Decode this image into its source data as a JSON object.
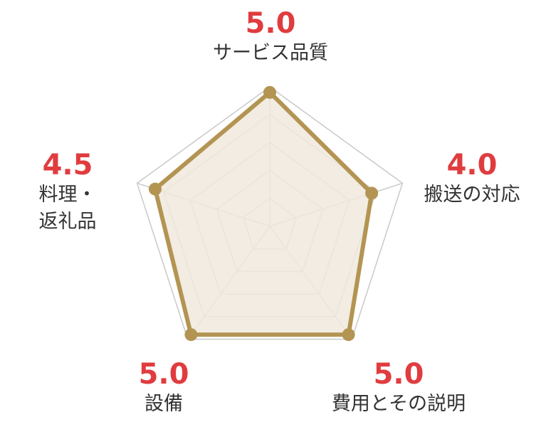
{
  "chart_data": {
    "type": "radar",
    "max": 5,
    "grid_levels": 5,
    "categories": [
      {
        "key": "service",
        "name": "サービス品質",
        "score_label": "5.0",
        "value": 5.0
      },
      {
        "key": "transport",
        "name": "搬送の対応",
        "score_label": "4.0",
        "value": 4.0
      },
      {
        "key": "cost",
        "name": "費用とその説明",
        "score_label": "5.0",
        "value": 5.0
      },
      {
        "key": "facility",
        "name": "設備",
        "score_label": "5.0",
        "value": 5.0
      },
      {
        "key": "food",
        "name": "料理・\n返礼品",
        "score_label": "4.5",
        "value": 4.5
      }
    ],
    "colors": {
      "series_stroke": "#b39452",
      "series_fill": "#f0e9dd",
      "grid": "#c9c9c9",
      "score": "#e03c3f",
      "label": "#333333"
    }
  }
}
